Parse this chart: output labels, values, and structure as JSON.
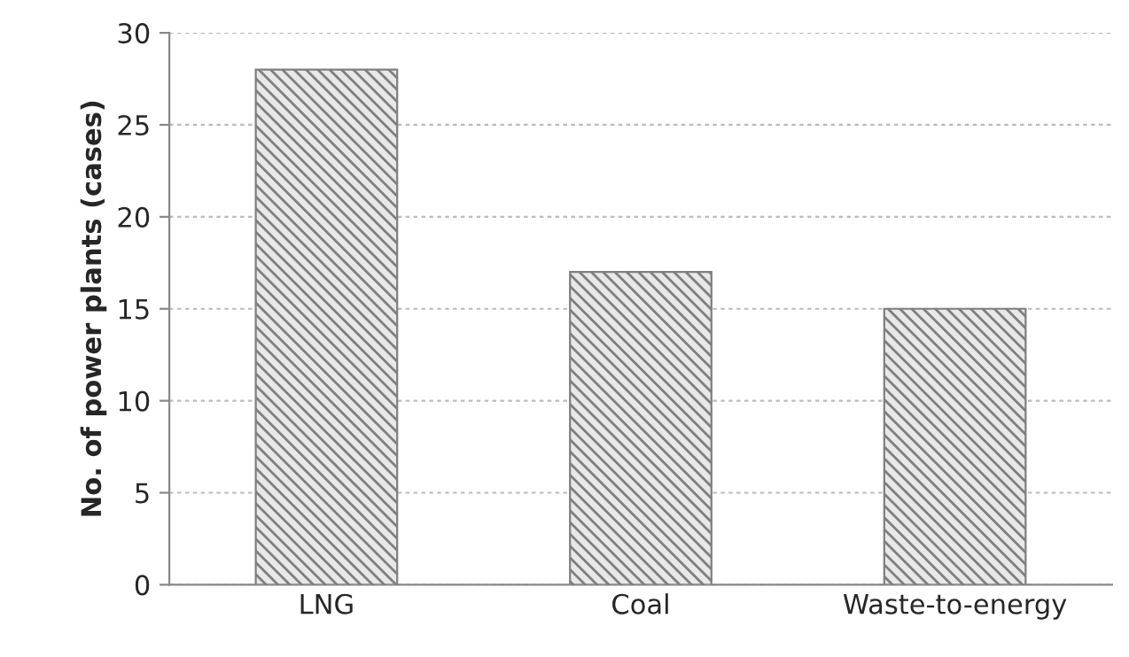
{
  "chart_data": {
    "type": "bar",
    "ylabel": "No. of power plants (cases)",
    "categories": [
      "LNG",
      "Coal",
      "Waste-to-energy"
    ],
    "values": [
      28,
      17,
      15
    ],
    "color": "#7f7f7f",
    "ylim": [
      0,
      30
    ],
    "yticks": [
      0,
      5,
      10,
      15,
      20,
      25,
      30
    ],
    "grid": "y"
  }
}
